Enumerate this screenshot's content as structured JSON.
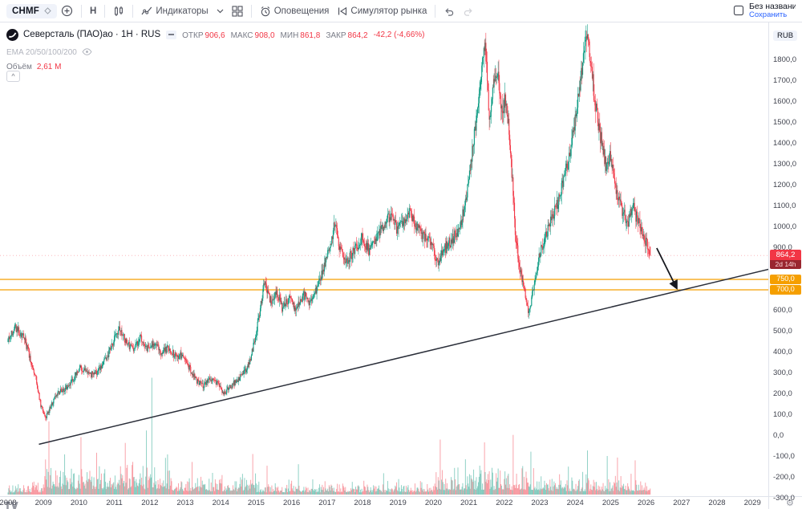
{
  "toolbar": {
    "symbol": "CHMF",
    "interval": "Н",
    "indicators": "Индикаторы",
    "alerts": "Оповещения",
    "replay": "Симулятор рынка",
    "layout_name": "Без названия",
    "save": "Сохранить"
  },
  "legend": {
    "title": "Северсталь (ПАО)ао · 1Н · RUS",
    "ohlc": [
      {
        "label": "ОТКР",
        "value": "906,6"
      },
      {
        "label": "МАКС",
        "value": "908,0"
      },
      {
        "label": "МИН",
        "value": "861,8"
      },
      {
        "label": "ЗАКР",
        "value": "864,2"
      }
    ],
    "change": "-42,2 (-4,66%)",
    "ema": "EMA 20/50/100/200",
    "volume_label": "Объём",
    "volume_value": "2,61 М"
  },
  "price_axis": {
    "currency": "RUB",
    "last_price": "864,2",
    "countdown": "2d 14h",
    "ticks": [
      [
        1800,
        "1800,0"
      ],
      [
        1700,
        "1700,0"
      ],
      [
        1600,
        "1600,0"
      ],
      [
        1500,
        "1500,0"
      ],
      [
        1400,
        "1400,0"
      ],
      [
        1300,
        "1300,0"
      ],
      [
        1200,
        "1200,0"
      ],
      [
        1100,
        "1100,0"
      ],
      [
        1000,
        "1000,0"
      ],
      [
        900,
        "900,0"
      ],
      [
        600,
        "600,0"
      ],
      [
        500,
        "500,0"
      ],
      [
        400,
        "400,0"
      ],
      [
        300,
        "300,0"
      ],
      [
        200,
        "200,0"
      ],
      [
        100,
        "100,0"
      ],
      [
        0,
        "0,0"
      ],
      [
        -100,
        "-100,0"
      ],
      [
        -200,
        "-200,0"
      ],
      [
        -300,
        "-300,0"
      ]
    ],
    "level_badges": [
      [
        750,
        "750,0"
      ],
      [
        700,
        "700,0"
      ]
    ]
  },
  "time_axis": {
    "years": [
      2008,
      2009,
      2010,
      2011,
      2012,
      2013,
      2014,
      2015,
      2016,
      2017,
      2018,
      2019,
      2020,
      2021,
      2022,
      2023,
      2024,
      2025,
      2026,
      2027,
      2028,
      2029
    ]
  },
  "chart_data": {
    "type": "candlestick",
    "symbol": "CHMF",
    "name": "Северсталь (ПАО)ао",
    "interval": "1Н",
    "exchange_suffix": "RUS",
    "currency": "RUB",
    "current_bar": {
      "open": 906.6,
      "high": 908.0,
      "low": 861.8,
      "close": 864.2,
      "change": -42.2,
      "change_pct": -4.66,
      "volume": "2,61 М"
    },
    "x_domain_years": [
      2008,
      2029.5
    ],
    "y_domain": [
      -300,
      1870
    ],
    "horizontal_levels": [
      750,
      700
    ],
    "trendline": {
      "t1": 2008.87,
      "p1": -40,
      "t2": 2029.74,
      "p2": 810
    },
    "arrow": {
      "t1": 2026.3,
      "p1": 900,
      "t2": 2026.85,
      "p2": 712
    },
    "last_time": 2026.12,
    "colors": {
      "up": "#089981",
      "down": "#f23645",
      "vol_up": "rgba(8,153,129,0.45)",
      "vol_down": "rgba(242,54,69,0.45)",
      "level": "#f59f00",
      "trend": "#2a2e39",
      "arrow": "#16181e"
    },
    "price_anchors": [
      [
        2008.0,
        450
      ],
      [
        2008.2,
        520
      ],
      [
        2008.45,
        480
      ],
      [
        2008.6,
        400
      ],
      [
        2008.8,
        280
      ],
      [
        2008.95,
        140
      ],
      [
        2009.08,
        88
      ],
      [
        2009.25,
        150
      ],
      [
        2009.45,
        210
      ],
      [
        2009.65,
        230
      ],
      [
        2009.85,
        270
      ],
      [
        2010.05,
        330
      ],
      [
        2010.3,
        290
      ],
      [
        2010.55,
        310
      ],
      [
        2010.8,
        370
      ],
      [
        2011.0,
        460
      ],
      [
        2011.15,
        515
      ],
      [
        2011.35,
        450
      ],
      [
        2011.55,
        410
      ],
      [
        2011.75,
        470
      ],
      [
        2011.95,
        420
      ],
      [
        2012.15,
        450
      ],
      [
        2012.35,
        400
      ],
      [
        2012.55,
        420
      ],
      [
        2012.75,
        380
      ],
      [
        2012.95,
        390
      ],
      [
        2013.15,
        320
      ],
      [
        2013.35,
        260
      ],
      [
        2013.55,
        240
      ],
      [
        2013.75,
        275
      ],
      [
        2013.95,
        245
      ],
      [
        2014.1,
        205
      ],
      [
        2014.3,
        240
      ],
      [
        2014.5,
        270
      ],
      [
        2014.7,
        310
      ],
      [
        2014.85,
        360
      ],
      [
        2015.05,
        520
      ],
      [
        2015.25,
        730
      ],
      [
        2015.45,
        640
      ],
      [
        2015.6,
        700
      ],
      [
        2015.75,
        615
      ],
      [
        2015.95,
        660
      ],
      [
        2016.15,
        600
      ],
      [
        2016.35,
        680
      ],
      [
        2016.55,
        640
      ],
      [
        2016.75,
        720
      ],
      [
        2016.95,
        820
      ],
      [
        2017.1,
        900
      ],
      [
        2017.25,
        1030
      ],
      [
        2017.4,
        880
      ],
      [
        2017.6,
        840
      ],
      [
        2017.8,
        900
      ],
      [
        2018.0,
        950
      ],
      [
        2018.2,
        890
      ],
      [
        2018.4,
        940
      ],
      [
        2018.6,
        1010
      ],
      [
        2018.8,
        1050
      ],
      [
        2019.0,
        990
      ],
      [
        2019.2,
        1030
      ],
      [
        2019.35,
        1070
      ],
      [
        2019.55,
        1010
      ],
      [
        2019.75,
        960
      ],
      [
        2019.95,
        920
      ],
      [
        2020.15,
        830
      ],
      [
        2020.35,
        900
      ],
      [
        2020.55,
        940
      ],
      [
        2020.75,
        990
      ],
      [
        2020.95,
        1140
      ],
      [
        2021.15,
        1400
      ],
      [
        2021.35,
        1720
      ],
      [
        2021.48,
        1880
      ],
      [
        2021.6,
        1530
      ],
      [
        2021.72,
        1700
      ],
      [
        2021.82,
        1770
      ],
      [
        2021.95,
        1560
      ],
      [
        2022.05,
        1620
      ],
      [
        2022.18,
        1420
      ],
      [
        2022.32,
        1000
      ],
      [
        2022.45,
        800
      ],
      [
        2022.6,
        680
      ],
      [
        2022.72,
        585
      ],
      [
        2022.85,
        720
      ],
      [
        2023.0,
        870
      ],
      [
        2023.2,
        960
      ],
      [
        2023.4,
        1060
      ],
      [
        2023.6,
        1160
      ],
      [
        2023.8,
        1300
      ],
      [
        2024.0,
        1480
      ],
      [
        2024.18,
        1720
      ],
      [
        2024.32,
        1940
      ],
      [
        2024.45,
        1800
      ],
      [
        2024.6,
        1580
      ],
      [
        2024.75,
        1420
      ],
      [
        2024.9,
        1280
      ],
      [
        2025.02,
        1340
      ],
      [
        2025.18,
        1170
      ],
      [
        2025.35,
        1080
      ],
      [
        2025.5,
        1020
      ],
      [
        2025.65,
        1100
      ],
      [
        2025.8,
        1020
      ],
      [
        2025.95,
        955
      ],
      [
        2026.06,
        915
      ],
      [
        2026.12,
        880
      ]
    ],
    "volume_eras": [
      [
        2008,
        2009,
        10
      ],
      [
        2009,
        2012.6,
        26
      ],
      [
        2012.6,
        2015,
        16
      ],
      [
        2015,
        2020,
        11
      ],
      [
        2020,
        2023,
        22
      ],
      [
        2023,
        2026.2,
        16
      ]
    ],
    "volume_spikes": [
      [
        2009.15,
        92
      ],
      [
        2009.6,
        58
      ],
      [
        2010.05,
        68
      ],
      [
        2010.5,
        52
      ],
      [
        2011.3,
        58
      ],
      [
        2011.9,
        72
      ],
      [
        2012.06,
        148
      ],
      [
        2012.5,
        55
      ],
      [
        2013.2,
        44
      ],
      [
        2014.9,
        58
      ],
      [
        2015.3,
        40
      ],
      [
        2016.2,
        34
      ],
      [
        2018.6,
        30
      ],
      [
        2020.2,
        70
      ],
      [
        2020.9,
        46
      ],
      [
        2021.45,
        62
      ],
      [
        2022.25,
        86
      ],
      [
        2022.75,
        54
      ],
      [
        2023.8,
        40
      ],
      [
        2024.35,
        56
      ],
      [
        2024.9,
        44
      ],
      [
        2025.2,
        50
      ],
      [
        2025.7,
        40
      ]
    ]
  }
}
